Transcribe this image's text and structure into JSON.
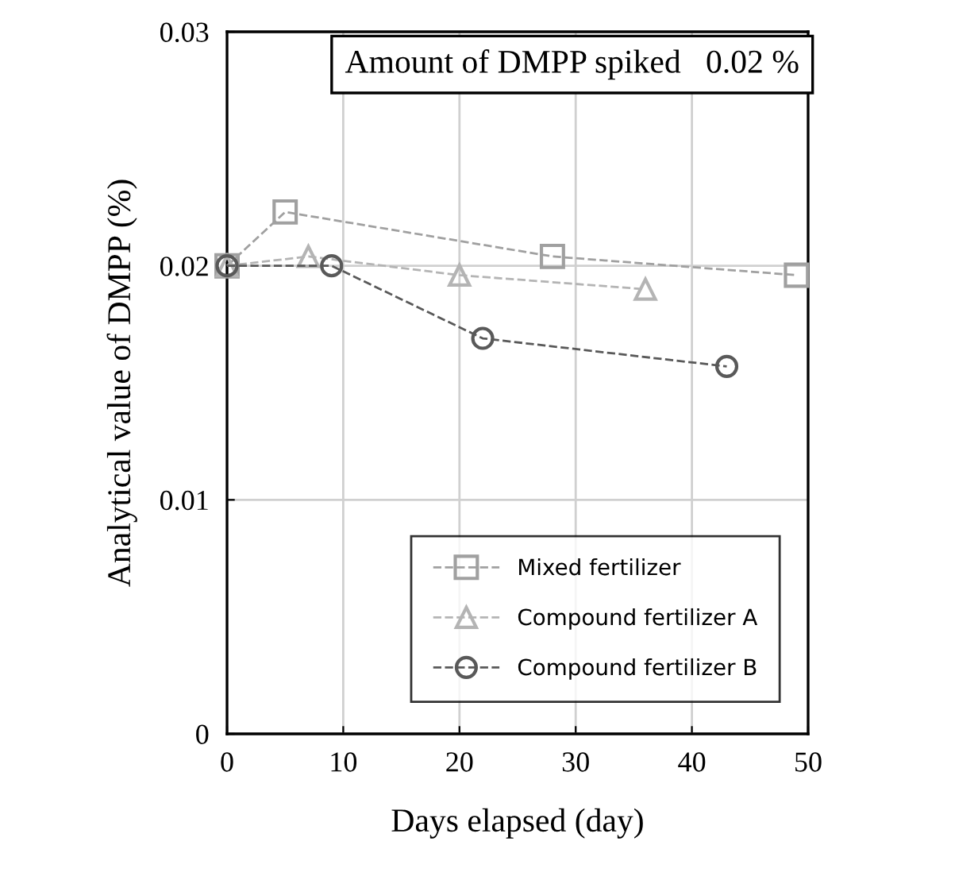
{
  "chart_data": {
    "type": "line",
    "xlabel": "Days elapsed (day)",
    "ylabel": "Analytical value of DMPP (%)",
    "annotations": [
      "Amount of DMPP spiked   0.02 %"
    ],
    "series": [
      {
        "name": "Mixed fertilizer",
        "color": "#a0a0a0",
        "marker": "square",
        "x": [
          0,
          5,
          28,
          49
        ],
        "values": [
          0.02,
          0.0223,
          0.0204,
          0.0196
        ]
      },
      {
        "name": "Compound fertilizer A",
        "color": "#b4b4b4",
        "marker": "triangle",
        "x": [
          0,
          7,
          20,
          36
        ],
        "values": [
          0.02,
          0.0204,
          0.0196,
          0.019
        ]
      },
      {
        "name": "Compound fertilizer B",
        "color": "#595959",
        "marker": "circle",
        "x": [
          0,
          9,
          22,
          43
        ],
        "values": [
          0.02,
          0.02,
          0.0169,
          0.0157
        ]
      }
    ],
    "xlim": [
      0,
      50
    ],
    "xticks": [
      0,
      10,
      20,
      30,
      40,
      50
    ],
    "ylim": [
      0,
      0.03
    ],
    "yticks": [
      0,
      0.01,
      0.02,
      0.03
    ],
    "grid": true,
    "legend": "bottom right",
    "line_style": "dashed"
  }
}
